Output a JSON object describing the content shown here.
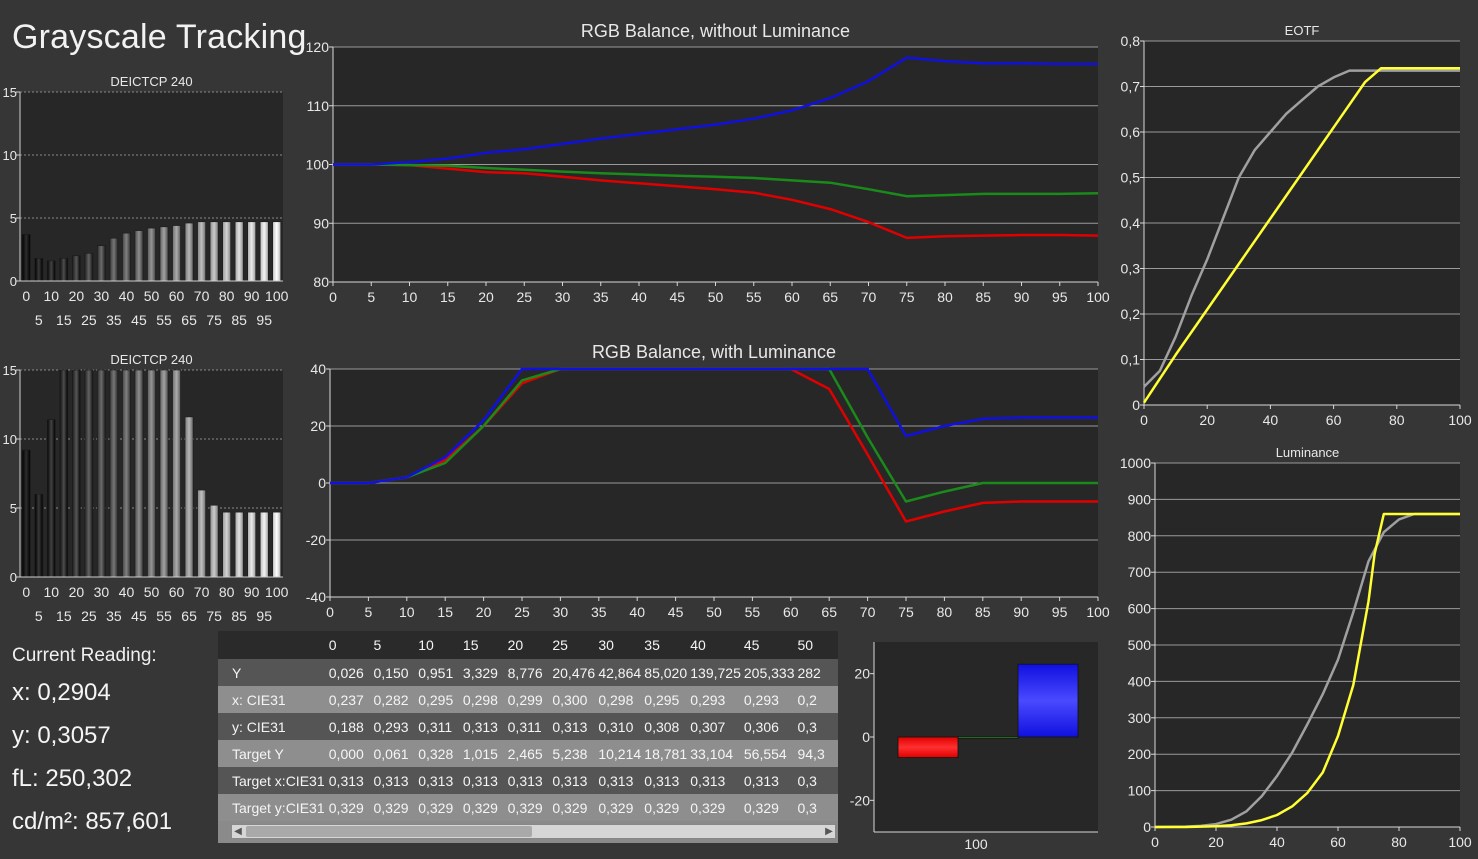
{
  "page_title": "Grayscale Tracking",
  "colors": {
    "red": "#e00000",
    "green": "#1a8a1a",
    "blue": "#1010e0",
    "yellow": "#ffff33",
    "gray": "#a0a0a0",
    "plot_bg": "#272727",
    "grid": "#a0a0a0"
  },
  "current_reading": {
    "header": "Current Reading:",
    "x": "x: 0,2904",
    "y": "y: 0,3057",
    "fl": "fL: 250,302",
    "cdm2": "cd/m²: 857,601"
  },
  "chart_data": [
    {
      "id": "deictcp-top",
      "type": "bar",
      "title": "DEICTCP 240",
      "categories": [
        0,
        5,
        10,
        15,
        20,
        25,
        30,
        35,
        40,
        45,
        50,
        55,
        60,
        65,
        70,
        75,
        80,
        85,
        90,
        95,
        100
      ],
      "values": [
        3.7,
        1.8,
        1.6,
        1.8,
        2.0,
        2.2,
        2.8,
        3.4,
        3.8,
        4.0,
        4.2,
        4.3,
        4.4,
        4.6,
        4.7,
        4.7,
        4.7,
        4.7,
        4.7,
        4.7,
        4.7
      ],
      "ylim": [
        0,
        15
      ],
      "yticks": [
        0,
        5,
        10,
        15
      ],
      "xticks_top": [
        "0",
        "10",
        "20",
        "30",
        "40",
        "50",
        "60",
        "70",
        "80",
        "90",
        "100"
      ],
      "xticks_bottom": [
        "5",
        "15",
        "25",
        "35",
        "45",
        "55",
        "65",
        "75",
        "85",
        "95"
      ]
    },
    {
      "id": "deictcp-bottom",
      "type": "bar",
      "title": "DEICTCP 240",
      "categories": [
        0,
        5,
        10,
        15,
        20,
        25,
        30,
        35,
        40,
        45,
        50,
        55,
        60,
        65,
        70,
        75,
        80,
        85,
        90,
        95,
        100
      ],
      "values": [
        9.2,
        6.0,
        11.4,
        15,
        15,
        15,
        15,
        15,
        15,
        15,
        15,
        15,
        15,
        11.6,
        6.3,
        5.2,
        4.7,
        4.7,
        4.7,
        4.7,
        4.7
      ],
      "ylim": [
        0,
        15
      ],
      "yticks": [
        0,
        5,
        10,
        15
      ],
      "xticks_top": [
        "0",
        "10",
        "20",
        "30",
        "40",
        "50",
        "60",
        "70",
        "80",
        "90",
        "100"
      ],
      "xticks_bottom": [
        "5",
        "15",
        "25",
        "35",
        "45",
        "55",
        "65",
        "75",
        "85",
        "95"
      ]
    },
    {
      "id": "rgb-without",
      "type": "line",
      "title": "RGB Balance, without Luminance",
      "x": [
        0,
        5,
        10,
        15,
        20,
        25,
        30,
        35,
        40,
        45,
        50,
        55,
        60,
        65,
        70,
        75,
        80,
        85,
        90,
        95,
        100
      ],
      "xticks": [
        0,
        5,
        10,
        15,
        20,
        25,
        30,
        35,
        40,
        45,
        50,
        55,
        60,
        65,
        70,
        75,
        80,
        85,
        90,
        95,
        100
      ],
      "ylim": [
        80,
        120
      ],
      "yticks": [
        80,
        90,
        100,
        110,
        120
      ],
      "series": [
        {
          "color": "red",
          "values": [
            100,
            100,
            99.9,
            99.3,
            98.7,
            98.5,
            97.9,
            97.3,
            96.8,
            96.3,
            95.8,
            95.2,
            94.0,
            92.4,
            90.2,
            87.5,
            87.8,
            87.9,
            88.0,
            88.0,
            87.9
          ]
        },
        {
          "color": "green",
          "values": [
            100,
            100,
            99.9,
            99.8,
            99.4,
            99.1,
            98.8,
            98.5,
            98.3,
            98.1,
            97.9,
            97.7,
            97.3,
            96.9,
            95.8,
            94.6,
            94.8,
            95.0,
            95.0,
            95.0,
            95.1
          ]
        },
        {
          "color": "blue",
          "values": [
            100,
            100,
            100.4,
            101.0,
            102.0,
            102.6,
            103.5,
            104.4,
            105.2,
            106.0,
            106.8,
            107.8,
            109.2,
            111.3,
            114.2,
            118.2,
            117.6,
            117.2,
            117.2,
            117.1,
            117.1
          ]
        }
      ]
    },
    {
      "id": "rgb-with",
      "type": "line",
      "title": "RGB Balance, with Luminance",
      "x": [
        0,
        5,
        10,
        15,
        20,
        25,
        30,
        35,
        40,
        45,
        50,
        55,
        60,
        65,
        70,
        75,
        80,
        85,
        90,
        95,
        100
      ],
      "xticks": [
        0,
        5,
        10,
        15,
        20,
        25,
        30,
        35,
        40,
        45,
        50,
        55,
        60,
        65,
        70,
        75,
        80,
        85,
        90,
        95,
        100
      ],
      "ylim": [
        -40,
        40
      ],
      "yticks": [
        -40,
        -20,
        0,
        20,
        40
      ],
      "series": [
        {
          "color": "red",
          "values": [
            0,
            0,
            2,
            8,
            20,
            35,
            40,
            40,
            40,
            40,
            40,
            40,
            40,
            33,
            10,
            -13.5,
            -10,
            -7,
            -6.5,
            -6.5,
            -6.5
          ]
        },
        {
          "color": "green",
          "values": [
            0,
            0,
            2,
            7,
            20,
            36,
            40,
            40,
            40,
            40,
            40,
            40,
            40,
            40,
            16,
            -6.5,
            -3,
            0,
            0,
            0,
            0
          ]
        },
        {
          "color": "blue",
          "values": [
            0,
            0,
            2,
            9,
            22,
            40,
            40,
            40,
            40,
            40,
            40,
            40,
            40,
            40,
            40,
            16.5,
            20,
            22.5,
            23,
            23,
            23
          ]
        }
      ]
    },
    {
      "id": "eotf",
      "type": "line",
      "title": "EOTF",
      "xlim": [
        0,
        100
      ],
      "xticks": [
        0,
        20,
        40,
        60,
        80,
        100
      ],
      "ylim": [
        0,
        0.8
      ],
      "yticks": [
        "0",
        "0,1",
        "0,2",
        "0,3",
        "0,4",
        "0,5",
        "0,6",
        "0,7",
        "0,8"
      ],
      "series": [
        {
          "color": "gray",
          "x": [
            0,
            5,
            10,
            15,
            20,
            25,
            30,
            35,
            40,
            45,
            50,
            55,
            60,
            65,
            70,
            75,
            80,
            90,
            100
          ],
          "values": [
            0.04,
            0.075,
            0.15,
            0.24,
            0.32,
            0.41,
            0.5,
            0.56,
            0.6,
            0.64,
            0.67,
            0.7,
            0.72,
            0.735,
            0.735,
            0.735,
            0.735,
            0.735,
            0.735
          ]
        },
        {
          "color": "yellow",
          "x": [
            0,
            10,
            20,
            30,
            40,
            50,
            60,
            70,
            75,
            80,
            90,
            100
          ],
          "values": [
            0.005,
            0.11,
            0.21,
            0.31,
            0.41,
            0.51,
            0.61,
            0.71,
            0.74,
            0.74,
            0.74,
            0.74
          ]
        }
      ]
    },
    {
      "id": "luminance",
      "type": "line",
      "title": "Luminance",
      "xlim": [
        0,
        100
      ],
      "xticks": [
        0,
        20,
        40,
        60,
        80,
        100
      ],
      "ylim": [
        0,
        1000
      ],
      "yticks": [
        0,
        100,
        200,
        300,
        400,
        500,
        600,
        700,
        800,
        900,
        1000
      ],
      "series": [
        {
          "color": "gray",
          "x": [
            0,
            10,
            15,
            20,
            25,
            30,
            35,
            40,
            45,
            50,
            55,
            60,
            65,
            70,
            75,
            80,
            85,
            90,
            100
          ],
          "values": [
            0,
            1,
            3,
            8,
            20,
            43,
            85,
            140,
            205,
            283,
            365,
            460,
            590,
            730,
            810,
            845,
            860,
            860,
            860
          ]
        },
        {
          "color": "yellow",
          "x": [
            0,
            10,
            15,
            20,
            25,
            30,
            35,
            40,
            45,
            50,
            55,
            60,
            65,
            70,
            72,
            75,
            80,
            90,
            100
          ],
          "values": [
            0,
            0,
            1,
            2,
            5,
            10,
            19,
            33,
            57,
            94,
            150,
            250,
            390,
            620,
            750,
            860,
            860,
            860,
            860
          ]
        }
      ]
    },
    {
      "id": "current-bars",
      "type": "bar",
      "category": "100",
      "ylim": [
        -30,
        30
      ],
      "yticks": [
        -20,
        0,
        20
      ],
      "series": [
        {
          "color": "red",
          "value": -6.5
        },
        {
          "color": "green",
          "value": 0
        },
        {
          "color": "blue",
          "value": 23
        }
      ]
    }
  ],
  "table": {
    "columns": [
      "0",
      "5",
      "10",
      "15",
      "20",
      "25",
      "30",
      "35",
      "40",
      "45",
      "50"
    ],
    "rows": [
      {
        "label": "Y",
        "values": [
          "0,026",
          "0,150",
          "0,951",
          "3,329",
          "8,776",
          "20,476",
          "42,864",
          "85,020",
          "139,725",
          "205,333",
          "282"
        ]
      },
      {
        "label": "x: CIE31",
        "values": [
          "0,237",
          "0,282",
          "0,295",
          "0,298",
          "0,299",
          "0,300",
          "0,298",
          "0,295",
          "0,293",
          "0,293",
          "0,2"
        ]
      },
      {
        "label": "y: CIE31",
        "values": [
          "0,188",
          "0,293",
          "0,311",
          "0,313",
          "0,311",
          "0,313",
          "0,310",
          "0,308",
          "0,307",
          "0,306",
          "0,3"
        ]
      },
      {
        "label": "Target Y",
        "values": [
          "0,000",
          "0,061",
          "0,328",
          "1,015",
          "2,465",
          "5,238",
          "10,214",
          "18,781",
          "33,104",
          "56,554",
          "94,3"
        ]
      },
      {
        "label": "Target x:CIE31",
        "values": [
          "0,313",
          "0,313",
          "0,313",
          "0,313",
          "0,313",
          "0,313",
          "0,313",
          "0,313",
          "0,313",
          "0,313",
          "0,3"
        ]
      },
      {
        "label": "Target y:CIE31",
        "values": [
          "0,329",
          "0,329",
          "0,329",
          "0,329",
          "0,329",
          "0,329",
          "0,329",
          "0,329",
          "0,329",
          "0,329",
          "0,3"
        ]
      }
    ]
  }
}
